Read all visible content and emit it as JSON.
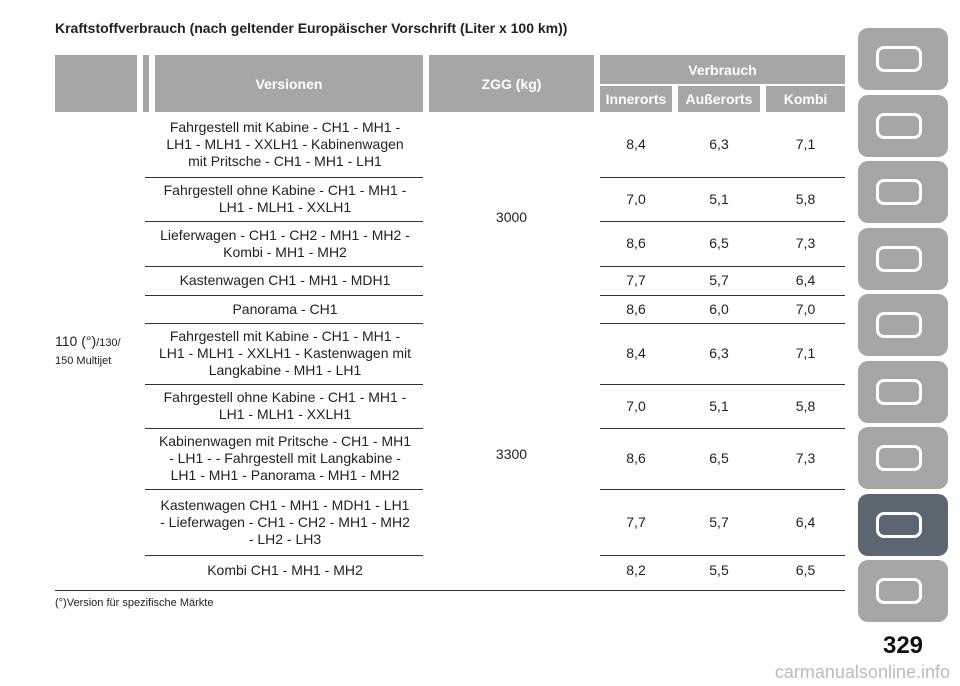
{
  "title": "Kraftstoffverbrauch (nach geltender Europäischer Vorschrift (Liter x 100 km))",
  "table": {
    "headers": {
      "versionen": "Versionen",
      "zgg": "ZGG (kg)",
      "verbrauch": "Verbrauch",
      "innerorts": "Innerorts",
      "ausserorts": "Außerorts",
      "kombi": "Kombi"
    },
    "engine": [
      "110 (°)",
      "/130/",
      "150 Multijet"
    ],
    "groups": [
      {
        "zgg": "3000",
        "rows": [
          {
            "version": [
              "Fahrgestell mit Kabine - CH1 - MH1 -",
              "LH1 - MLH1 - XXLH1 - Kabinenwagen",
              "mit Pritsche - CH1 - MH1 - LH1"
            ],
            "values": [
              "8,4",
              "6,3",
              "7,1"
            ]
          },
          {
            "version": [
              "Fahrgestell ohne Kabine - CH1 - MH1 -",
              "LH1 - MLH1 - XXLH1"
            ],
            "values": [
              "7,0",
              "5,1",
              "5,8"
            ]
          },
          {
            "version": [
              "Lieferwagen - CH1 - CH2 - MH1 - MH2 -",
              "Kombi - MH1 - MH2"
            ],
            "values": [
              "8,6",
              "6,5",
              "7,3"
            ]
          },
          {
            "version": [
              "Kastenwagen CH1 - MH1 - MDH1"
            ],
            "values": [
              "7,7",
              "5,7",
              "6,4"
            ]
          },
          {
            "version": [
              "Panorama - CH1"
            ],
            "values": [
              "8,6",
              "6,0",
              "7,0"
            ]
          }
        ]
      },
      {
        "zgg": "3300",
        "rows": [
          {
            "version": [
              "Fahrgestell mit Kabine - CH1 - MH1 -",
              "LH1 - MLH1 - XXLH1 - Kastenwagen mit",
              "Langkabine - MH1 - LH1"
            ],
            "values": [
              "8,4",
              "6,3",
              "7,1"
            ]
          },
          {
            "version": [
              "Fahrgestell ohne Kabine - CH1 - MH1 -",
              "LH1 - MLH1 - XXLH1"
            ],
            "values": [
              "7,0",
              "5,1",
              "5,8"
            ]
          },
          {
            "version": [
              "Kabinenwagen mit Pritsche - CH1 - MH1",
              "- LH1 - - Fahrgestell mit Langkabine -",
              "LH1 - MH1 - Panorama - MH1 - MH2"
            ],
            "values": [
              "8,6",
              "6,5",
              "7,3"
            ]
          },
          {
            "version": [
              "Kastenwagen CH1 - MH1 - MDH1 - LH1",
              "- Lieferwagen - CH1 - CH2 - MH1 - MH2",
              "- LH2 - LH3"
            ],
            "values": [
              "7,7",
              "5,7",
              "6,4"
            ]
          },
          {
            "version": [
              "Kombi CH1 - MH1 - MH2"
            ],
            "values": [
              "8,2",
              "5,5",
              "6,5"
            ]
          }
        ]
      }
    ]
  },
  "footnote": "(°)Version für spezifische Märkte",
  "page_number": "329",
  "watermark": "carmanualsonline.info"
}
